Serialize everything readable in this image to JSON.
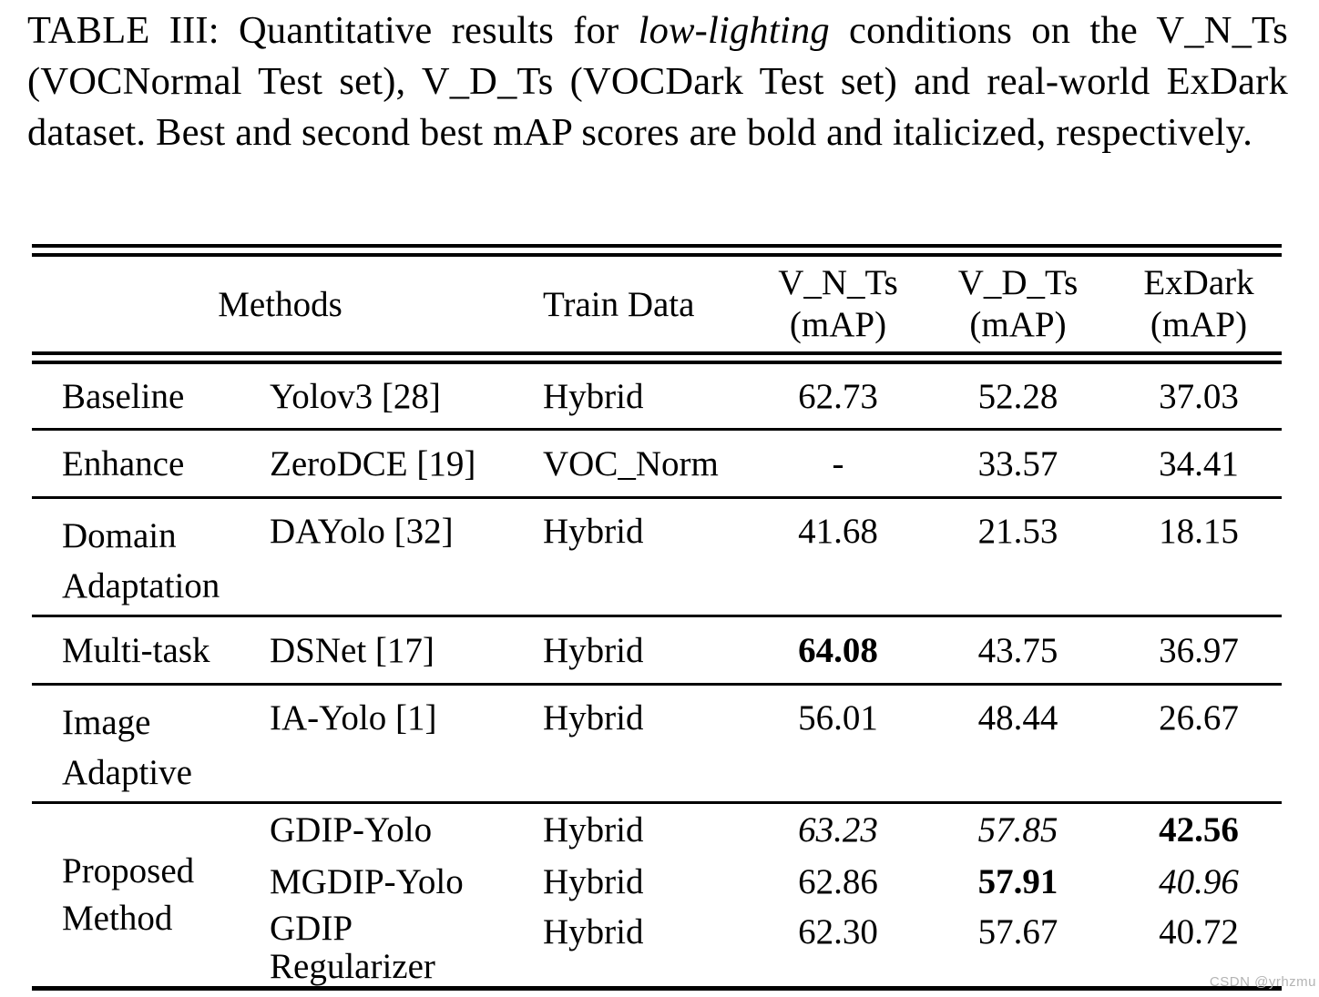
{
  "caption": {
    "part1": "TABLE III: Quantitative results for ",
    "italic": "low-lighting",
    "part2": " conditions on the V_N_Ts (VOCNormal Test set), V_D_Ts (VOCDark Test set) and real-world ExDark dataset. Best and second best mAP scores are bold and italicized, respectively."
  },
  "table": {
    "header": {
      "methods": "Methods",
      "train": "Train Data",
      "vnts": "V_N_Ts\n(mAP)",
      "vdts": "V_D_Ts\n(mAP)",
      "exdark": "ExDark\n(mAP)"
    },
    "rows": [
      {
        "category": "Baseline",
        "method": "Yolov3 [28]",
        "train": "Hybrid",
        "vnts": "62.73",
        "vnts_style": "normal",
        "vdts": "52.28",
        "vdts_style": "normal",
        "exdark": "37.03",
        "exdark_style": "normal"
      },
      {
        "category": "Enhance",
        "method": "ZeroDCE [19]",
        "train": "VOC_Norm",
        "vnts": "-",
        "vnts_style": "normal",
        "vdts": "33.57",
        "vdts_style": "normal",
        "exdark": "34.41",
        "exdark_style": "normal"
      },
      {
        "category": "Domain\nAdaptation",
        "method": "DAYolo [32]",
        "train": "Hybrid",
        "vnts": "41.68",
        "vnts_style": "normal",
        "vdts": "21.53",
        "vdts_style": "normal",
        "exdark": "18.15",
        "exdark_style": "normal"
      },
      {
        "category": "Multi-task",
        "method": "DSNet [17]",
        "train": "Hybrid",
        "vnts": "64.08",
        "vnts_style": "bold",
        "vdts": "43.75",
        "vdts_style": "normal",
        "exdark": "36.97",
        "exdark_style": "normal"
      },
      {
        "category": "Image\nAdaptive",
        "method": "IA-Yolo [1]",
        "train": "Hybrid",
        "vnts": "56.01",
        "vnts_style": "normal",
        "vdts": "48.44",
        "vdts_style": "normal",
        "exdark": "26.67",
        "exdark_style": "normal"
      }
    ],
    "group": {
      "category": "Proposed\nMethod",
      "rows": [
        {
          "method": "GDIP-Yolo",
          "train": "Hybrid",
          "vnts": "63.23",
          "vnts_style": "italic",
          "vdts": "57.85",
          "vdts_style": "italic",
          "exdark": "42.56",
          "exdark_style": "bold"
        },
        {
          "method": "MGDIP-Yolo",
          "train": "Hybrid",
          "vnts": "62.86",
          "vnts_style": "normal",
          "vdts": "57.91",
          "vdts_style": "bold",
          "exdark": "40.96",
          "exdark_style": "italic"
        },
        {
          "method": "GDIP\nRegularizer",
          "train": "Hybrid",
          "vnts": "62.30",
          "vnts_style": "normal",
          "vdts": "57.67",
          "vdts_style": "normal",
          "exdark": "40.72",
          "exdark_style": "normal"
        }
      ]
    }
  },
  "watermark": "CSDN @yrhzmu"
}
